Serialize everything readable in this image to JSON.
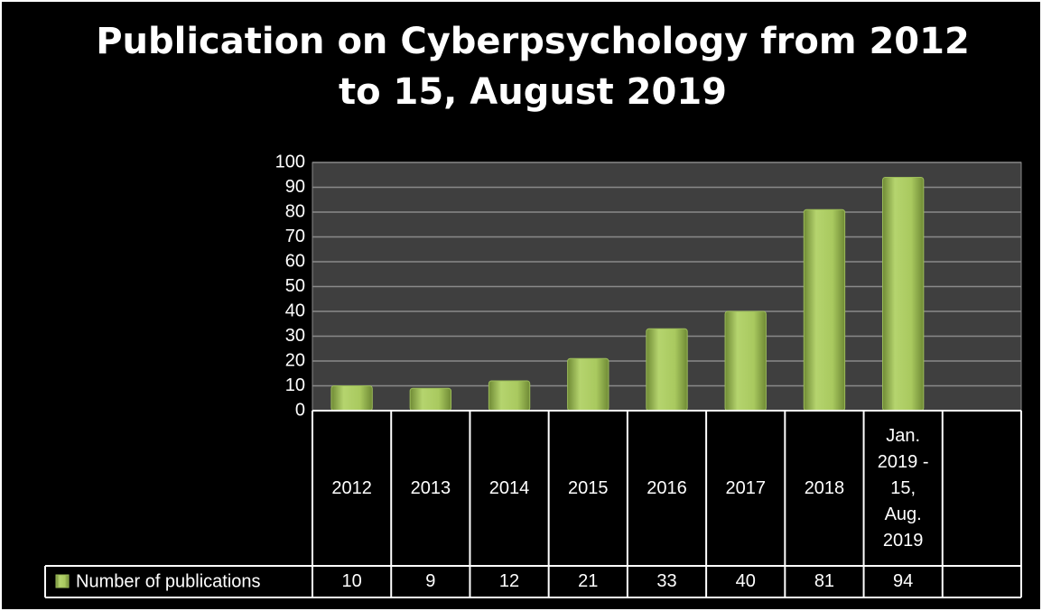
{
  "chart_data": {
    "type": "bar",
    "title": "Publication on Cyberpsychology from 2012 to 15, August 2019",
    "categories": [
      "2012",
      "2013",
      "2014",
      "2015",
      "2016",
      "2017",
      "2018",
      "Jan. 2019 - 15, Aug. 2019",
      null
    ],
    "series": [
      {
        "name": "Number of publications",
        "color": "#9bbb59",
        "values": [
          10,
          9,
          12,
          21,
          33,
          40,
          81,
          94,
          null
        ]
      }
    ],
    "ylim": [
      0,
      100
    ],
    "yticks": [
      0,
      10,
      20,
      30,
      40,
      50,
      60,
      70,
      80,
      90,
      100
    ],
    "grid": true,
    "data_table": true
  }
}
